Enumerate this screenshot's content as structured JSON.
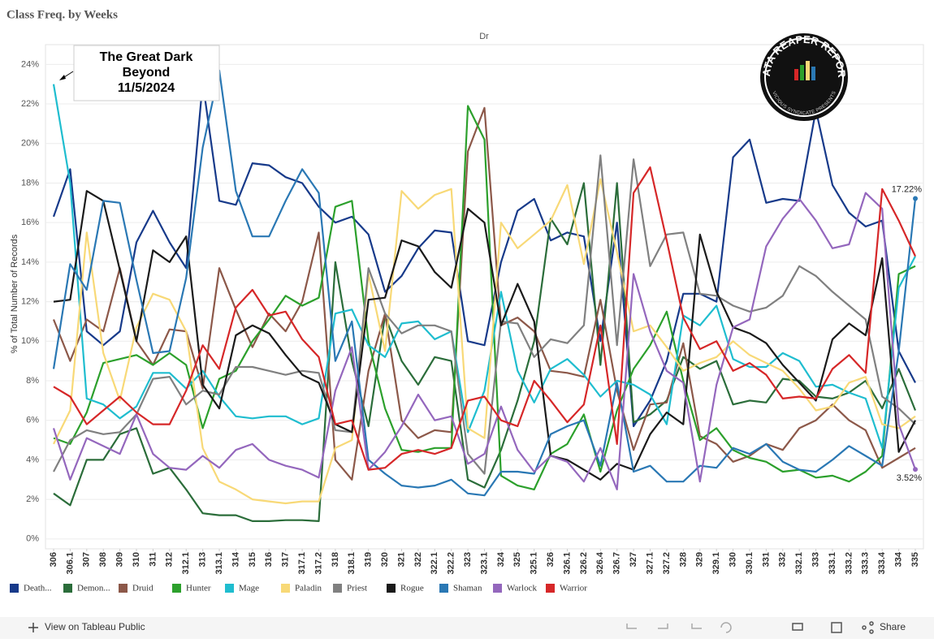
{
  "header": {
    "title": "Class  Freq.  by  Weeks"
  },
  "annotation": {
    "lines": [
      "The Great Dark",
      "Beyond",
      "11/5/2024"
    ]
  },
  "logo": {
    "title": "DATA REAPER REPORT",
    "subtitle": "VICIOUS SYNDICATE PRESENTS"
  },
  "footer": {
    "link": "View on Tableau Public",
    "share": "Share"
  },
  "chart_data": {
    "type": "line",
    "panel_label": "Dr",
    "y_label": "% of Total Number of Records",
    "grid": true,
    "categories": [
      "306",
      "306.1",
      "307",
      "308",
      "309",
      "310",
      "311",
      "312",
      "312.1",
      "313",
      "313.1",
      "314",
      "315",
      "316",
      "317",
      "317.1",
      "317.2",
      "318",
      "318.1",
      "319",
      "320",
      "321",
      "322",
      "322.1",
      "322.2",
      "323",
      "323.1",
      "324",
      "325",
      "325.1",
      "326",
      "326.1",
      "326.2",
      "326.4",
      "326.7",
      "327",
      "327.1",
      "327.2",
      "328",
      "329",
      "329.1",
      "330",
      "330.1",
      "331",
      "332",
      "332.1",
      "333",
      "333.1",
      "333.2",
      "333.3",
      "333.4",
      "334",
      "335"
    ],
    "ylim": [
      -0.5,
      25
    ],
    "yticks": [
      {
        "value": 0,
        "label": "0%"
      },
      {
        "value": 2,
        "label": "2%"
      },
      {
        "value": 4,
        "label": "4%"
      },
      {
        "value": 6,
        "label": "6%"
      },
      {
        "value": 8,
        "label": "8%"
      },
      {
        "value": 10,
        "label": "10%"
      },
      {
        "value": 12,
        "label": "12%"
      },
      {
        "value": 14,
        "label": "14%"
      },
      {
        "value": 16,
        "label": "16%"
      },
      {
        "value": 18,
        "label": "18%"
      },
      {
        "value": 20,
        "label": "20%"
      },
      {
        "value": 22,
        "label": "22%"
      },
      {
        "value": 24,
        "label": "24%"
      }
    ],
    "series": [
      {
        "name": "Death...",
        "color": "#173a8a",
        "values": [
          16.3,
          18.7,
          10.5,
          9.8,
          10.5,
          15,
          16.6,
          15,
          13.7,
          23.1,
          17.1,
          16.9,
          19,
          18.9,
          18.3,
          18,
          16.8,
          16,
          16.3,
          15.4,
          12.5,
          13.3,
          14.7,
          15.6,
          15.5,
          10,
          9.8,
          14,
          16.6,
          17.2,
          15.1,
          15.5,
          15.3,
          10,
          16,
          5.7,
          7,
          9,
          12.4,
          12.4,
          12,
          19.3,
          20.2,
          17,
          17.2,
          17.1,
          21.7,
          17.9,
          16.5,
          15.8,
          16.1,
          9.5,
          7.9
        ]
      },
      {
        "name": "Demon...",
        "color": "#2b6d3a",
        "values": [
          2.3,
          1.7,
          4,
          4,
          5.3,
          5.6,
          3.3,
          3.6,
          2.5,
          1.3,
          1.2,
          1.2,
          0.9,
          0.9,
          0.95,
          0.95,
          0.9,
          14,
          9,
          5.7,
          11.3,
          9,
          7.8,
          9.2,
          9,
          3,
          2.6,
          4.5,
          7,
          10,
          16.2,
          14.9,
          18,
          8.8,
          18,
          5.9,
          6.3,
          7,
          9.2,
          8.6,
          9,
          6.8,
          7,
          6.9,
          8.1,
          8,
          7.2,
          7.1,
          7.4,
          8,
          6.6,
          8.6,
          6.5
        ]
      },
      {
        "name": "Druid",
        "color": "#8c5849",
        "values": [
          11.1,
          9,
          11.1,
          10.5,
          13.7,
          10,
          8.8,
          10.6,
          10.5,
          7.6,
          13.7,
          11.6,
          9.7,
          11.4,
          10.5,
          12,
          15.5,
          4,
          3,
          8.5,
          11.4,
          6,
          5.1,
          5.5,
          5.4,
          19.6,
          21.8,
          10.8,
          11.2,
          10.5,
          8.5,
          8.4,
          8.2,
          12.1,
          7.5,
          4.5,
          6.8,
          6.9,
          9.9,
          5.2,
          4.8,
          3.9,
          4.2,
          4.8,
          4.5,
          5.6,
          6,
          6.8,
          6,
          5.5,
          3.6,
          4.1,
          4.6
        ]
      },
      {
        "name": "Hunter",
        "color": "#2ca02c",
        "values": [
          5.1,
          4.8,
          6.4,
          8.9,
          9.1,
          9.3,
          8.8,
          9.4,
          8.8,
          5.6,
          8.1,
          8.5,
          10,
          11.1,
          12.3,
          11.8,
          12.2,
          16.8,
          17.1,
          10,
          6.6,
          4.5,
          4.4,
          4.6,
          4.6,
          21.9,
          20.2,
          3.2,
          2.7,
          2.5,
          4.3,
          4.8,
          6.3,
          3.4,
          6.5,
          8.6,
          9.8,
          11.5,
          8,
          5,
          5.6,
          4.5,
          4.1,
          3.9,
          3.4,
          3.5,
          3.1,
          3.2,
          2.9,
          3.4,
          4.2,
          13.4,
          13.8
        ]
      },
      {
        "name": "Mage",
        "color": "#1fbdcf",
        "values": [
          23,
          18,
          7.1,
          6.8,
          6.1,
          6.7,
          8.4,
          8.4,
          7.6,
          8.5,
          7.2,
          6.2,
          6.1,
          6.2,
          6.2,
          5.8,
          6.1,
          11.4,
          11.6,
          9.8,
          9.2,
          10.9,
          11,
          10.1,
          10.5,
          5.4,
          7.5,
          12.5,
          8.5,
          6.9,
          8.6,
          9.1,
          8.3,
          7.2,
          8,
          7.8,
          7.3,
          5.8,
          11.3,
          10.8,
          11.8,
          9.1,
          8.7,
          8.7,
          9.4,
          9,
          7.7,
          7.8,
          7.4,
          7.1,
          4.6,
          12.7,
          14.3
        ]
      },
      {
        "name": "Paladin",
        "color": "#f8d977",
        "values": [
          4.8,
          6.5,
          15.5,
          9.4,
          7,
          10.7,
          12.4,
          12.1,
          10.5,
          4.6,
          2.9,
          2.5,
          2,
          1.9,
          1.8,
          1.9,
          1.9,
          4.6,
          5,
          13.4,
          9.5,
          17.6,
          16.7,
          17.4,
          17.7,
          5.6,
          5.1,
          16,
          14.7,
          15.4,
          16.1,
          17.9,
          13.9,
          18.2,
          14.5,
          10.5,
          10.8,
          9.7,
          8.5,
          8.9,
          9.2,
          10,
          9.3,
          8.9,
          8.5,
          7.6,
          6.5,
          6.7,
          7.9,
          8.2,
          5.8,
          5.6,
          6.2
        ]
      },
      {
        "name": "Priest",
        "color": "#808080",
        "values": [
          3.4,
          5,
          5.5,
          5.3,
          5.4,
          6.3,
          8.1,
          8.2,
          6.8,
          7.5,
          7.3,
          8.7,
          8.7,
          8.5,
          8.3,
          8.5,
          8.4,
          5.5,
          5.4,
          13.7,
          11.4,
          10.4,
          10.8,
          10.8,
          10.5,
          4.3,
          3.3,
          11,
          10.9,
          9.2,
          10.1,
          9.9,
          10.8,
          19.4,
          9.8,
          19.2,
          13.8,
          15.4,
          15.5,
          12.4,
          12.3,
          11.8,
          11.5,
          11.7,
          12.3,
          13.8,
          13.3,
          12.5,
          11.8,
          11.1,
          7.2,
          6.6,
          5.8
        ]
      },
      {
        "name": "Rogue",
        "color": "#1a1a1a",
        "values": [
          12,
          12.1,
          17.6,
          17.1,
          13.6,
          10,
          14.6,
          14,
          15.3,
          7.8,
          6.6,
          10.3,
          10.8,
          10.4,
          9.3,
          8.3,
          7.9,
          5.8,
          5.4,
          12.1,
          12.2,
          15.1,
          14.8,
          13.5,
          12.7,
          16.7,
          16,
          10.8,
          12.9,
          11,
          4.2,
          4,
          3.5,
          3,
          3.8,
          3.5,
          5.3,
          6.4,
          5.8,
          15.4,
          12.5,
          10.7,
          10.4,
          9.9,
          8.8,
          7.9,
          7,
          10.1,
          10.9,
          10.3,
          14.2,
          4.4,
          6
        ]
      },
      {
        "name": "Shaman",
        "color": "#2a78b4",
        "values": [
          8.6,
          13.9,
          12.6,
          17.1,
          17,
          13.1,
          9.4,
          9.5,
          13.2,
          19.8,
          23.7,
          17.6,
          15.3,
          15.3,
          17.1,
          18.7,
          17.5,
          9,
          11,
          4,
          3.3,
          2.7,
          2.6,
          2.7,
          3,
          2.3,
          2.2,
          3.4,
          3.4,
          3.3,
          5.3,
          5.7,
          6,
          3.7,
          7.9,
          3.4,
          3.7,
          2.9,
          2.9,
          3.7,
          3.6,
          4.6,
          4.3,
          4.8,
          3.9,
          3.5,
          3.4,
          4,
          4.7,
          4.2,
          3.7,
          9.5,
          17.22
        ],
        "value_labels": [
          null,
          null,
          null,
          null,
          null,
          null,
          null,
          null,
          null,
          null,
          null,
          null,
          null,
          null,
          null,
          null,
          null,
          null,
          null,
          null,
          null,
          null,
          null,
          null,
          null,
          null,
          null,
          null,
          null,
          null,
          null,
          null,
          null,
          null,
          null,
          null,
          null,
          null,
          null,
          null,
          null,
          null,
          null,
          null,
          null,
          null,
          null,
          null,
          null,
          null,
          null,
          null,
          "17.22%"
        ]
      },
      {
        "name": "Warlock",
        "color": "#9467bd",
        "values": [
          5.6,
          3,
          5.1,
          4.7,
          4.3,
          6.3,
          4.3,
          3.6,
          3.5,
          4.2,
          3.6,
          4.5,
          4.8,
          4,
          3.7,
          3.5,
          3.1,
          7.5,
          9.7,
          3.5,
          4.4,
          5.7,
          7.3,
          6,
          6.2,
          3.8,
          4.3,
          6.7,
          4.5,
          3.4,
          4.2,
          3.9,
          2.9,
          4.6,
          2.5,
          13.4,
          10.5,
          8.5,
          7.9,
          2.9,
          7.8,
          10.7,
          11.1,
          14.8,
          16.2,
          17.2,
          16.1,
          14.7,
          14.9,
          17.5,
          16.7,
          5.8,
          3.52
        ],
        "value_labels": [
          null,
          null,
          null,
          null,
          null,
          null,
          null,
          null,
          null,
          null,
          null,
          null,
          null,
          null,
          null,
          null,
          null,
          null,
          null,
          null,
          null,
          null,
          null,
          null,
          null,
          null,
          null,
          null,
          null,
          null,
          null,
          null,
          null,
          null,
          null,
          null,
          null,
          null,
          null,
          null,
          null,
          null,
          null,
          null,
          null,
          null,
          null,
          null,
          null,
          null,
          null,
          null,
          "3.52%"
        ]
      },
      {
        "name": "Warrior",
        "color": "#d62728",
        "values": [
          7.7,
          7.2,
          5.8,
          6.5,
          7.2,
          6.4,
          5.8,
          5.8,
          7.5,
          9.8,
          8.6,
          11.7,
          12.6,
          11.3,
          11.5,
          10.1,
          9.2,
          5.8,
          6,
          3.5,
          3.6,
          4.3,
          4.5,
          4.3,
          4.6,
          7,
          7.2,
          6,
          5.7,
          8,
          7,
          5.9,
          6.8,
          10.8,
          4.8,
          17.5,
          18.8,
          15.1,
          11.2,
          9.6,
          10,
          8.5,
          8.9,
          8.3,
          7.1,
          7.2,
          7.1,
          8.6,
          9.3,
          8.4,
          17.7,
          16.1,
          14.3
        ]
      }
    ]
  }
}
